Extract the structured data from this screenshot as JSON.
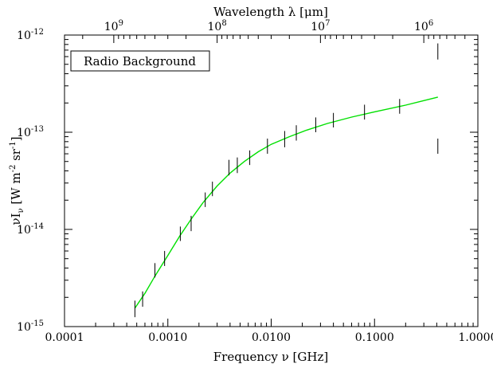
{
  "chart_data": {
    "type": "scatter",
    "title": "",
    "xlabel": "Frequency ν [GHz]",
    "top_xlabel": "Wavelength λ [μm]",
    "ylabel": {
      "main": "νI",
      "sub": "ν",
      "units_open": " [W m",
      "exp1": "-2",
      "units_mid": " sr",
      "exp2": "-1",
      "units_close": "]"
    },
    "legend_text": "Radio Background",
    "legend_position": "top-left",
    "xscale": "log",
    "yscale": "log",
    "xlim": [
      0.0001,
      1.0
    ],
    "ylim": [
      1e-15,
      1e-12
    ],
    "grid": false,
    "x_ticks": [
      {
        "value": 0.0001,
        "label": "0.0001"
      },
      {
        "value": 0.001,
        "label": "0.0010"
      },
      {
        "value": 0.01,
        "label": "0.0100"
      },
      {
        "value": 0.1,
        "label": "0.1000"
      },
      {
        "value": 1.0,
        "label": "1.0000"
      }
    ],
    "top_ticks": [
      {
        "value": 1000000000.0,
        "base": "10",
        "exp": "9"
      },
      {
        "value": 100000000.0,
        "base": "10",
        "exp": "8"
      },
      {
        "value": 10000000.0,
        "base": "10",
        "exp": "7"
      },
      {
        "value": 1000000.0,
        "base": "10",
        "exp": "6"
      }
    ],
    "y_ticks": [
      {
        "value": 1e-15,
        "base": "10",
        "exp": "-15"
      },
      {
        "value": 1e-14,
        "base": "10",
        "exp": "-14"
      },
      {
        "value": 1e-13,
        "base": "10",
        "exp": "-13"
      },
      {
        "value": 1e-12,
        "base": "10",
        "exp": "-12"
      }
    ],
    "series": [
      {
        "type": "errorbar",
        "color": "#000000",
        "points": [
          {
            "x": 0.00048,
            "y": 1.5e-15,
            "ylo": 1.25e-15,
            "yhi": 1.85e-15
          },
          {
            "x": 0.00057,
            "y": 1.9e-15,
            "ylo": 1.6e-15,
            "yhi": 2.3e-15
          },
          {
            "x": 0.00075,
            "y": 3.8e-15,
            "ylo": 3.2e-15,
            "yhi": 4.5e-15
          },
          {
            "x": 0.00093,
            "y": 5e-15,
            "ylo": 4.2e-15,
            "yhi": 6e-15
          },
          {
            "x": 0.00132,
            "y": 9e-15,
            "ylo": 7.6e-15,
            "yhi": 1.07e-14
          },
          {
            "x": 0.00168,
            "y": 1.15e-14,
            "ylo": 9.6e-15,
            "yhi": 1.38e-14
          },
          {
            "x": 0.0023,
            "y": 2e-14,
            "ylo": 1.7e-14,
            "yhi": 2.4e-14
          },
          {
            "x": 0.0027,
            "y": 2.6e-14,
            "ylo": 2.2e-14,
            "yhi": 3.1e-14
          },
          {
            "x": 0.0039,
            "y": 4.3e-14,
            "ylo": 3.6e-14,
            "yhi": 5.2e-14
          },
          {
            "x": 0.0047,
            "y": 4.6e-14,
            "ylo": 3.8e-14,
            "yhi": 5.5e-14
          },
          {
            "x": 0.0062,
            "y": 5.5e-14,
            "ylo": 4.6e-14,
            "yhi": 6.5e-14
          },
          {
            "x": 0.0092,
            "y": 7.2e-14,
            "ylo": 6e-14,
            "yhi": 8.6e-14
          },
          {
            "x": 0.0135,
            "y": 8.5e-14,
            "ylo": 7e-14,
            "yhi": 1.03e-13
          },
          {
            "x": 0.0175,
            "y": 9.8e-14,
            "ylo": 8.2e-14,
            "yhi": 1.18e-13
          },
          {
            "x": 0.027,
            "y": 1.2e-13,
            "ylo": 1e-13,
            "yhi": 1.42e-13
          },
          {
            "x": 0.04,
            "y": 1.33e-13,
            "ylo": 1.12e-13,
            "yhi": 1.58e-13
          },
          {
            "x": 0.08,
            "y": 1.6e-13,
            "ylo": 1.35e-13,
            "yhi": 1.92e-13
          },
          {
            "x": 0.175,
            "y": 1.85e-13,
            "ylo": 1.55e-13,
            "yhi": 2.2e-13
          },
          {
            "x": 0.41,
            "y": 6.8e-13,
            "ylo": 5.6e-13,
            "yhi": 8.2e-13
          },
          {
            "x": 0.41,
            "y": 7.2e-14,
            "ylo": 6e-14,
            "yhi": 8.6e-14
          }
        ]
      },
      {
        "type": "line",
        "color": "#00e000",
        "x": [
          0.00048,
          0.0006,
          0.00075,
          0.001,
          0.0013,
          0.0017,
          0.0022,
          0.003,
          0.004,
          0.0055,
          0.0075,
          0.01,
          0.015,
          0.022,
          0.035,
          0.06,
          0.1,
          0.2,
          0.41
        ],
        "y": [
          1.55e-15,
          2.2e-15,
          3.3e-15,
          5.4e-15,
          8.5e-15,
          1.3e-14,
          1.9e-14,
          2.8e-14,
          3.8e-14,
          5e-14,
          6.3e-14,
          7.5e-14,
          9e-14,
          1.05e-13,
          1.23e-13,
          1.43e-13,
          1.62e-13,
          1.9e-13,
          2.3e-13
        ]
      }
    ]
  }
}
